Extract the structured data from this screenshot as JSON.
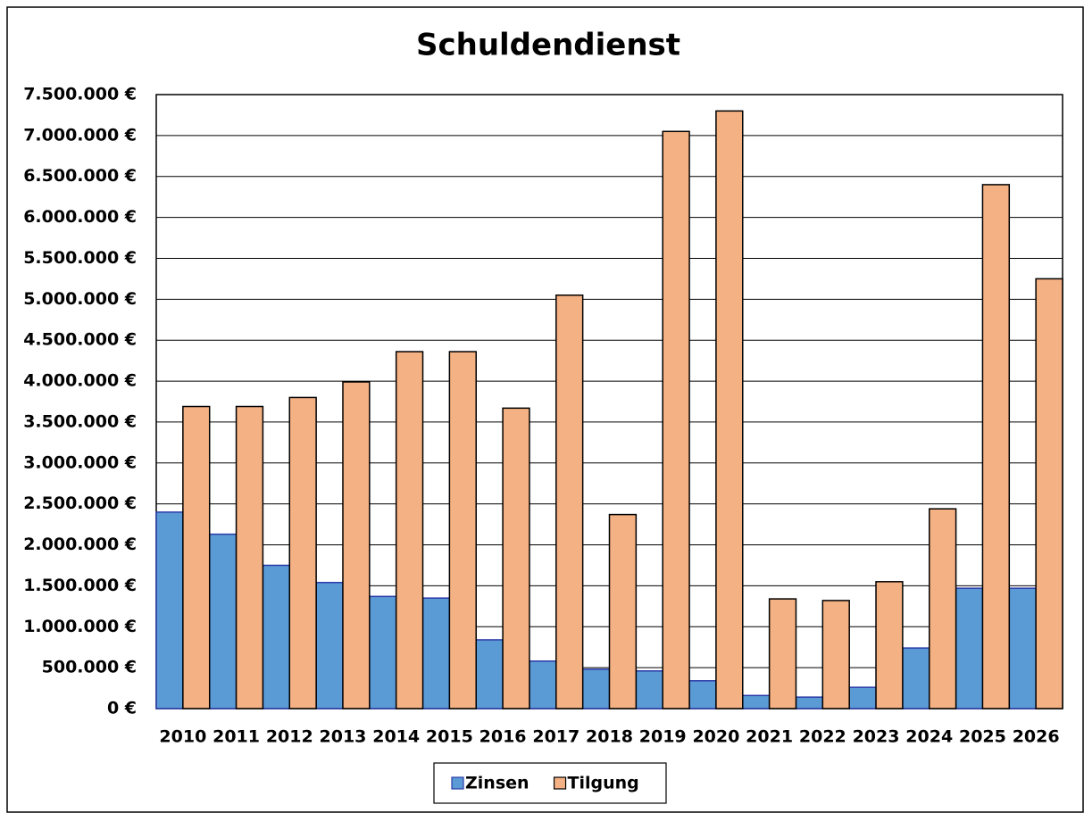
{
  "chart_data": {
    "type": "bar",
    "title": "Schuldendienst",
    "categories": [
      "2010",
      "2011",
      "2012",
      "2013",
      "2014",
      "2015",
      "2016",
      "2017",
      "2018",
      "2019",
      "2020",
      "2021",
      "2022",
      "2023",
      "2024",
      "2025",
      "2026"
    ],
    "series": [
      {
        "name": "Zinsen",
        "color": "#5b9bd5",
        "values": [
          2400000,
          2130000,
          1750000,
          1540000,
          1370000,
          1350000,
          840000,
          580000,
          480000,
          460000,
          340000,
          160000,
          140000,
          260000,
          740000,
          1470000,
          1470000
        ]
      },
      {
        "name": "Tilgung",
        "color": "#f4b183",
        "values": [
          3690000,
          3690000,
          3800000,
          3990000,
          4360000,
          4360000,
          3670000,
          5050000,
          2370000,
          7050000,
          7300000,
          1340000,
          1320000,
          1550000,
          2440000,
          6400000,
          5250000
        ]
      }
    ],
    "ylim": [
      0,
      7500000
    ],
    "yticks": [
      {
        "value": 0,
        "label": "0 €"
      },
      {
        "value": 500000,
        "label": "500.000 €"
      },
      {
        "value": 1000000,
        "label": "1.000.000 €"
      },
      {
        "value": 1500000,
        "label": "1.500.000 €"
      },
      {
        "value": 2000000,
        "label": "2.000.000 €"
      },
      {
        "value": 2500000,
        "label": "2.500.000 €"
      },
      {
        "value": 3000000,
        "label": "3.000.000 €"
      },
      {
        "value": 3500000,
        "label": "3.500.000 €"
      },
      {
        "value": 4000000,
        "label": "4.000.000 €"
      },
      {
        "value": 4500000,
        "label": "4.500.000 €"
      },
      {
        "value": 5000000,
        "label": "5.000.000 €"
      },
      {
        "value": 5500000,
        "label": "5.500.000 €"
      },
      {
        "value": 6000000,
        "label": "6.000.000 €"
      },
      {
        "value": 6500000,
        "label": "6.500.000 €"
      },
      {
        "value": 7000000,
        "label": "7.000.000 €"
      },
      {
        "value": 7500000,
        "label": "7.500.000 €"
      }
    ],
    "grid": true,
    "legend": "bottom"
  }
}
